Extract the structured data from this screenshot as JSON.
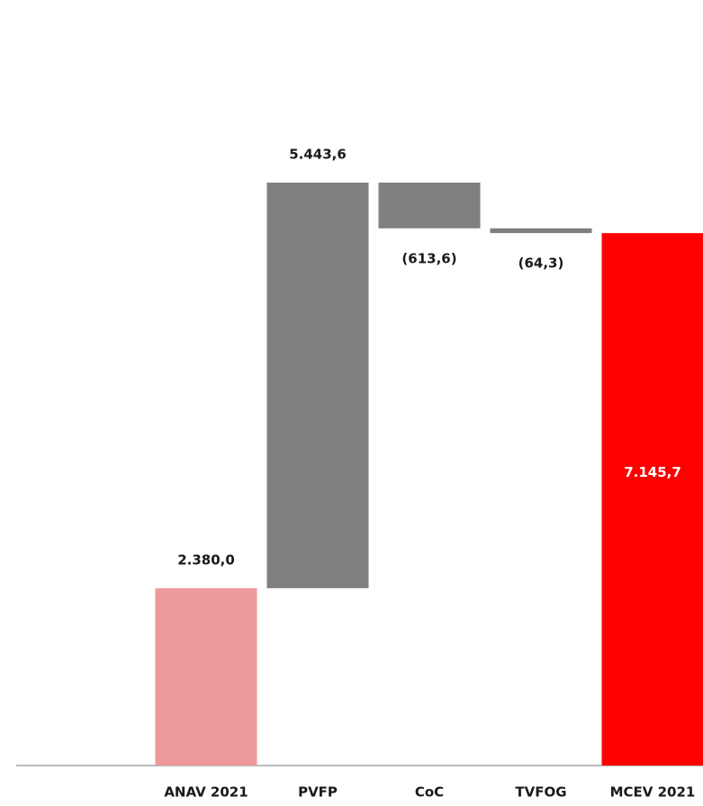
{
  "chart_data": {
    "type": "waterfall",
    "categories": [
      "ANAV 2021",
      "PVFP",
      "CoC",
      "TVFOG",
      "MCEV 2021"
    ],
    "values": [
      2380.0,
      5443.6,
      -613.6,
      -64.3,
      7145.7
    ],
    "value_labels": [
      "2.380,0",
      "5.443,6",
      "(613,6)",
      "(64,3)",
      "7.145,7"
    ],
    "measures": [
      "absolute",
      "relative",
      "relative",
      "relative",
      "total"
    ],
    "colors": [
      "#ec9a9c",
      "#808080",
      "#808080",
      "#808080",
      "#ff0000"
    ]
  }
}
